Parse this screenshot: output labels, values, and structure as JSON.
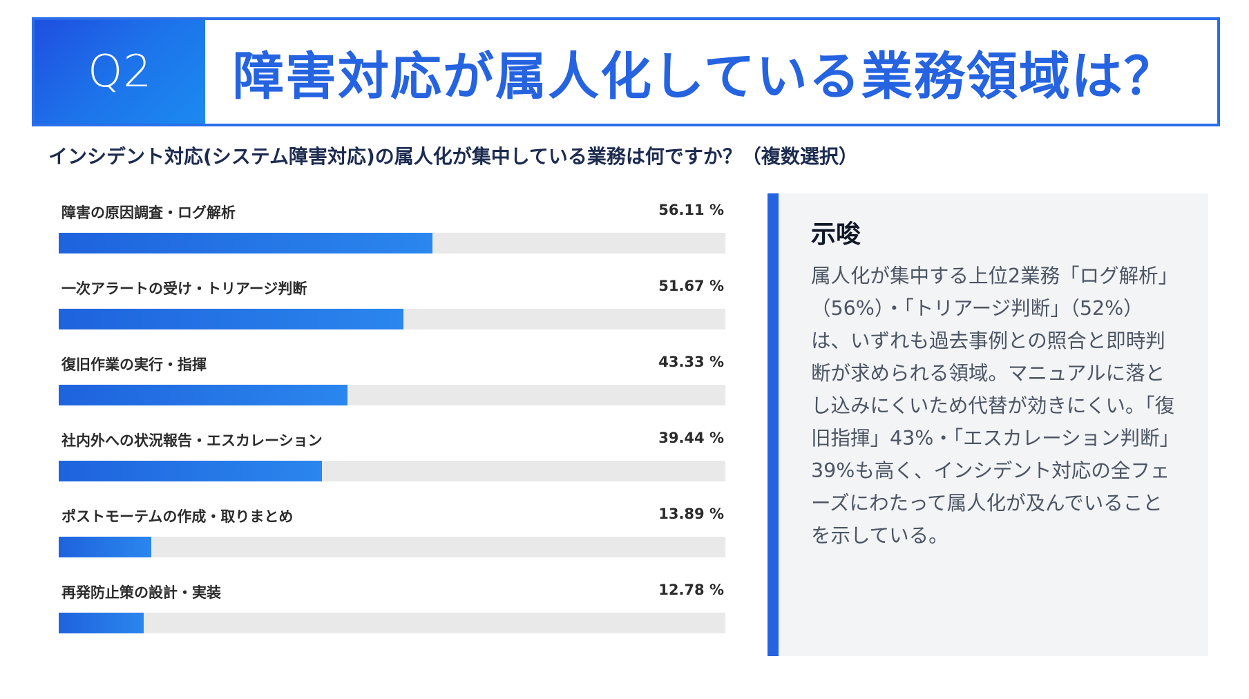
{
  "header": {
    "q_label": "Q2",
    "title": "障害対応が属人化している業務領域は？"
  },
  "subtitle": "インシデント対応(システム障害対応)の属人化が集中している業務は何ですか？（複数選択）",
  "chart_data": {
    "type": "bar",
    "orientation": "horizontal",
    "categories": [
      "障害の原因調査・ログ解析",
      "一次アラートの受け・トリアージ判断",
      "復旧作業の実行・指揮",
      "社内外への状況報告・エスカレーション",
      "ポストモーテムの作成・取りまとめ",
      "再発防止策の設計・実装"
    ],
    "values": [
      56.11,
      51.67,
      43.33,
      39.44,
      13.89,
      12.78
    ],
    "value_labels": [
      "56.11 %",
      "51.67 %",
      "43.33 %",
      "39.44 %",
      "13.89 %",
      "12.78 %"
    ],
    "xlim": [
      0,
      100
    ],
    "colors": {
      "bar": "#1e63dd",
      "track": "#e9e9e9"
    }
  },
  "insight": {
    "heading": "示唆",
    "body": "属人化が集中する上位2業務「ログ解析」（56%）・「トリアージ判断」（52%）は、いずれも過去事例との照合と即時判断が求められる領域。マニュアルに落とし込みにくいため代替が効きにくい。「復旧指揮」43%・「エスカレーション判断」39%も高く、インシデント対応の全フェーズにわたって属人化が及んでいることを示している。"
  }
}
